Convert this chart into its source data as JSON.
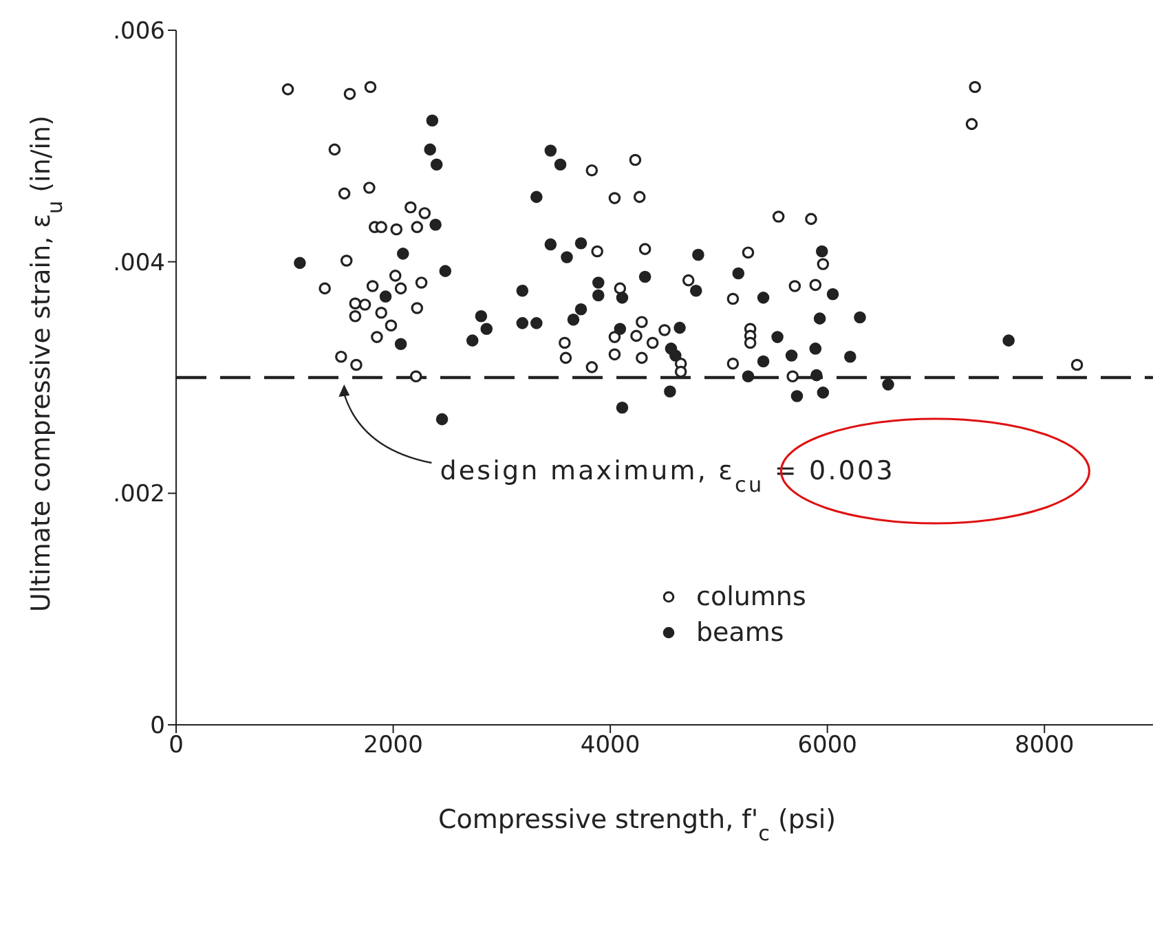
{
  "chart_data": {
    "type": "scatter",
    "xlabel": "Compressive strength, f'$_{c}$ (psi)",
    "ylabel": "Ultimate compressive strain, ε$_{u}$ (in/in)",
    "xlim": [
      0,
      9000
    ],
    "ylim": [
      0,
      0.006
    ],
    "xticks": [
      0,
      2000,
      4000,
      6000,
      8000
    ],
    "yticks": [
      {
        "value": 0,
        "label": "0"
      },
      {
        "value": 0.002,
        "label": ".002"
      },
      {
        "value": 0.004,
        "label": ".004"
      },
      {
        "value": 0.006,
        "label": ".006"
      }
    ],
    "grid": false,
    "legend": "bottom",
    "marker": "circle",
    "ref_lines": [
      {
        "axis": "y",
        "value": 0.003,
        "label": "design maximum, ε$_{cu}$ = 0.003",
        "line_style": "dashed",
        "color": "#222222"
      }
    ],
    "series": [
      {
        "name": "columns",
        "color": "#222222",
        "x": [
          1030,
          1600,
          1790,
          1460,
          1550,
          1780,
          2160,
          2290,
          1830,
          1890,
          2030,
          2220,
          1570,
          1370,
          2020,
          1810,
          2070,
          2260,
          1650,
          1740,
          1650,
          1890,
          2220,
          1980,
          1850,
          1520,
          1660,
          2210,
          3830,
          4230,
          4040,
          4270,
          3880,
          4320,
          4720,
          4090,
          4290,
          4040,
          4240,
          4390,
          4500,
          4650,
          4650,
          3580,
          3590,
          3830,
          4040,
          4290,
          5550,
          5850,
          5270,
          5960,
          5700,
          5890,
          5130,
          5290,
          5290,
          5290,
          5130,
          5680,
          7360,
          7330,
          8300
        ],
        "values": [
          0.00549,
          0.00545,
          0.00551,
          0.00497,
          0.00459,
          0.00464,
          0.00447,
          0.00442,
          0.0043,
          0.0043,
          0.00428,
          0.0043,
          0.00401,
          0.00377,
          0.00388,
          0.00379,
          0.00377,
          0.00382,
          0.00364,
          0.00363,
          0.00353,
          0.00356,
          0.0036,
          0.00345,
          0.00335,
          0.00318,
          0.00311,
          0.00301,
          0.00479,
          0.00488,
          0.00455,
          0.00456,
          0.00409,
          0.00411,
          0.00384,
          0.00377,
          0.00348,
          0.00335,
          0.00336,
          0.0033,
          0.00341,
          0.00312,
          0.00305,
          0.0033,
          0.00317,
          0.00309,
          0.0032,
          0.00317,
          0.00439,
          0.00437,
          0.00408,
          0.00398,
          0.00379,
          0.0038,
          0.00368,
          0.00342,
          0.00336,
          0.0033,
          0.00312,
          0.00301,
          0.00551,
          0.00519,
          0.00311
        ]
      },
      {
        "name": "beams",
        "color": "#222222",
        "x": [
          2360,
          2340,
          2400,
          2390,
          2090,
          1140,
          2480,
          1930,
          2070,
          2810,
          2860,
          2730,
          2450,
          3450,
          3540,
          3320,
          3450,
          3730,
          3600,
          4810,
          4320,
          4790,
          3190,
          3890,
          3890,
          4110,
          3730,
          3660,
          3190,
          3320,
          4090,
          4640,
          4560,
          4600,
          4550,
          4110,
          5950,
          5180,
          6050,
          5410,
          5930,
          6300,
          5540,
          5670,
          5890,
          6210,
          5410,
          5270,
          5900,
          5720,
          5960,
          6560,
          7670
        ],
        "values": [
          0.00522,
          0.00497,
          0.00484,
          0.00432,
          0.00407,
          0.00399,
          0.00392,
          0.0037,
          0.00329,
          0.00353,
          0.00342,
          0.00332,
          0.00264,
          0.00496,
          0.00484,
          0.00456,
          0.00415,
          0.00416,
          0.00404,
          0.00406,
          0.00387,
          0.00375,
          0.00375,
          0.00382,
          0.00371,
          0.00369,
          0.00359,
          0.0035,
          0.00347,
          0.00347,
          0.00342,
          0.00343,
          0.00325,
          0.00319,
          0.00288,
          0.00274,
          0.00409,
          0.0039,
          0.00372,
          0.00369,
          0.00351,
          0.00352,
          0.00335,
          0.00319,
          0.00325,
          0.00318,
          0.00314,
          0.00301,
          0.00302,
          0.00284,
          0.00287,
          0.00294,
          0.00332
        ]
      }
    ]
  }
}
